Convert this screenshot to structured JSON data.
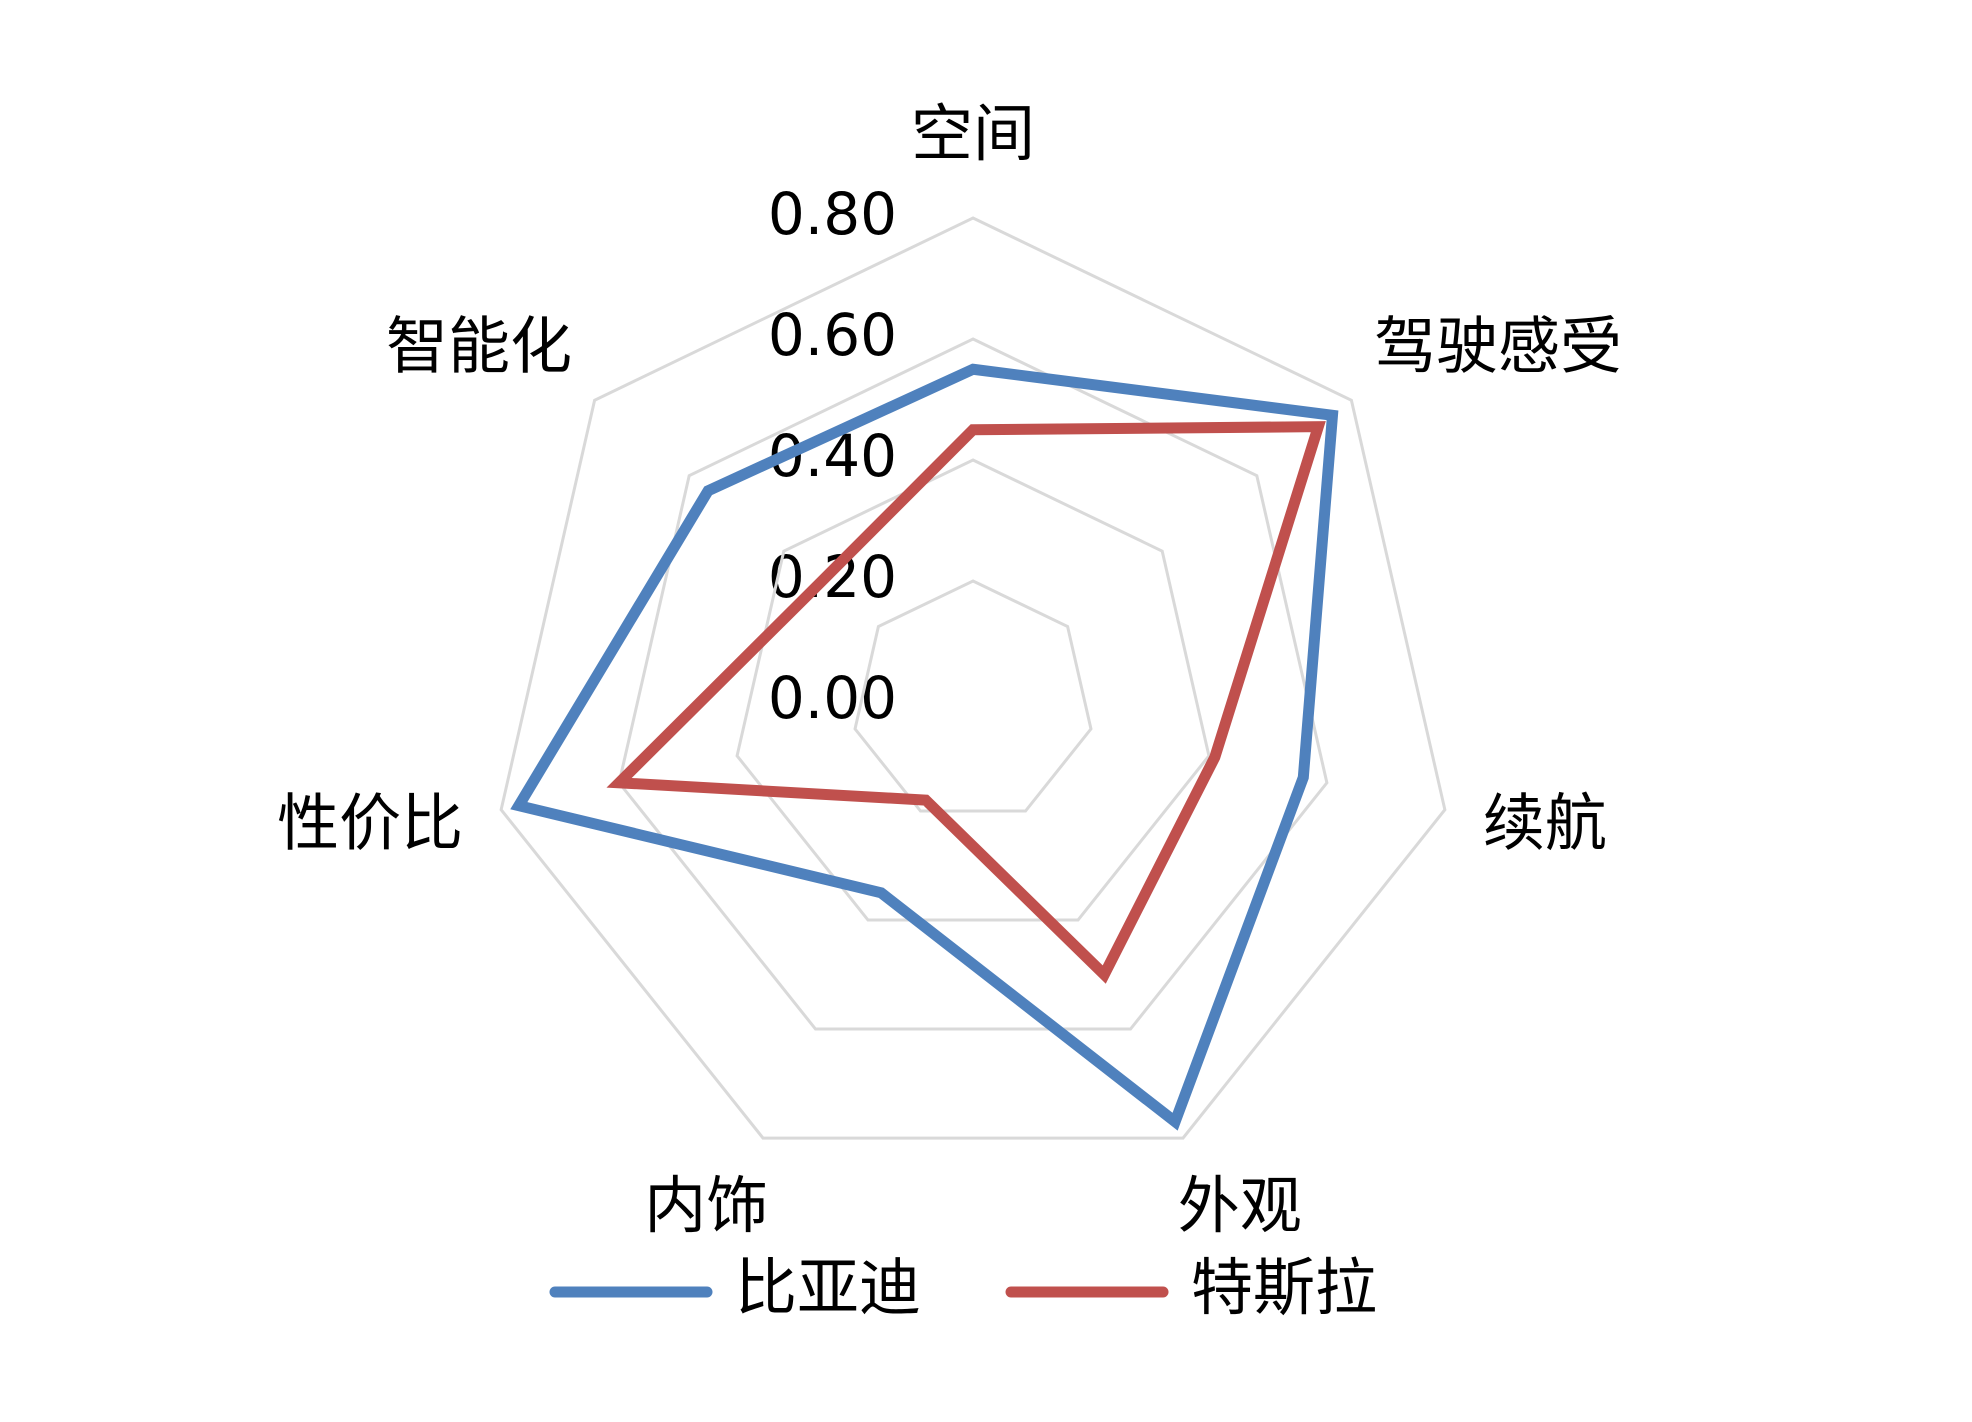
{
  "chart_data": {
    "type": "radar",
    "categories": [
      "空间",
      "驾驶感受",
      "续航",
      "外观",
      "内饰",
      "性价比",
      "智能化"
    ],
    "series": [
      {
        "name": "比亚迪",
        "color": "#4f81bd",
        "values": [
          0.55,
          0.76,
          0.56,
          0.77,
          0.35,
          0.77,
          0.56
        ]
      },
      {
        "name": "特斯拉",
        "color": "#c0504d",
        "values": [
          0.45,
          0.73,
          0.41,
          0.5,
          0.18,
          0.6,
          0.32
        ]
      }
    ],
    "ylim": [
      0,
      0.8
    ],
    "yticks": [
      {
        "value": 0,
        "label": "0.00"
      },
      {
        "value": 0.2,
        "label": "0.20"
      },
      {
        "value": 0.4,
        "label": "0.40"
      },
      {
        "value": 0.6,
        "label": "0.60"
      },
      {
        "value": 0.8,
        "label": "0.80"
      }
    ],
    "grid": true,
    "legend": "bottom"
  }
}
